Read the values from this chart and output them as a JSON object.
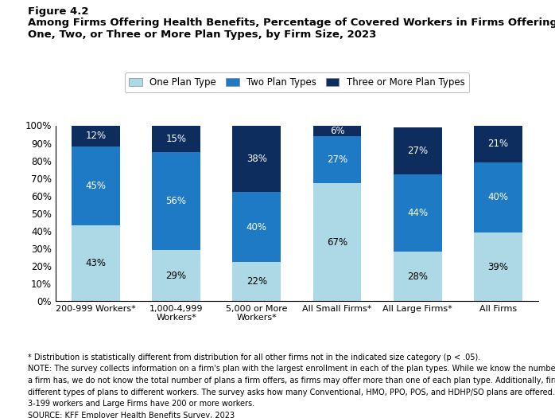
{
  "figure_label": "Figure 4.2",
  "title_line1": "Among Firms Offering Health Benefits, Percentage of Covered Workers in Firms Offering",
  "title_line2": "One, Two, or Three or More Plan Types, by Firm Size, 2023",
  "categories": [
    "200-999 Workers*",
    "1,000-4,999\nWorkers*",
    "5,000 or More\nWorkers*",
    "All Small Firms*",
    "All Large Firms*",
    "All Firms"
  ],
  "one_plan": [
    43,
    29,
    22,
    67,
    28,
    39
  ],
  "two_plan": [
    45,
    56,
    40,
    27,
    44,
    40
  ],
  "three_plus_plan": [
    12,
    15,
    38,
    6,
    27,
    21
  ],
  "color_one": "#add8e6",
  "color_two": "#1e7ac4",
  "color_three": "#0d2d5e",
  "legend_labels": [
    "One Plan Type",
    "Two Plan Types",
    "Three or More Plan Types"
  ],
  "ylim": [
    0,
    100
  ],
  "yticks": [
    0,
    10,
    20,
    30,
    40,
    50,
    60,
    70,
    80,
    90,
    100
  ],
  "ytick_labels": [
    "0%",
    "10%",
    "20%",
    "30%",
    "40%",
    "50%",
    "60%",
    "70%",
    "80%",
    "90%",
    "100%"
  ],
  "footnote1": "* Distribution is statistically different from distribution for all other firms not in the indicated size category (p < .05).",
  "footnote2a": "NOTE: The survey collects information on a firm's plan with the largest enrollment in each of the plan types. While we know the number of plan types",
  "footnote2b": "a firm has, we do not know the total number of plans a firm offers, as firms may offer more than one of each plan type. Additionally, firms may offer",
  "footnote2c": "different types of plans to different workers. The survey asks how many Conventional, HMO, PPO, POS, and HDHP/SO plans are offered. Small Firms have",
  "footnote2d": "3-199 workers and Large Firms have 200 or more workers.",
  "footnote3": "SOURCE: KFF Employer Health Benefits Survey, 2023"
}
